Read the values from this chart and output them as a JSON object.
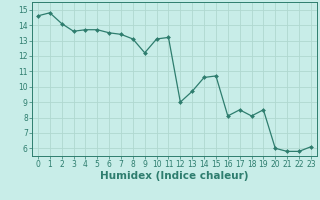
{
  "x": [
    0,
    1,
    2,
    3,
    4,
    5,
    6,
    7,
    8,
    9,
    10,
    11,
    12,
    13,
    14,
    15,
    16,
    17,
    18,
    19,
    20,
    21,
    22,
    23
  ],
  "y": [
    14.6,
    14.8,
    14.1,
    13.6,
    13.7,
    13.7,
    13.5,
    13.4,
    13.1,
    12.2,
    13.1,
    13.2,
    9.0,
    9.7,
    10.6,
    10.7,
    8.1,
    8.5,
    8.1,
    8.5,
    6.0,
    5.8,
    5.8,
    6.1
  ],
  "line_color": "#2e7d6e",
  "marker_color": "#2e7d6e",
  "bg_color": "#c8ede8",
  "grid_color": "#b0d8d0",
  "xlabel": "Humidex (Indice chaleur)",
  "xlim": [
    -0.5,
    23.5
  ],
  "ylim": [
    5.5,
    15.5
  ],
  "yticks": [
    6,
    7,
    8,
    9,
    10,
    11,
    12,
    13,
    14,
    15
  ],
  "xticks": [
    0,
    1,
    2,
    3,
    4,
    5,
    6,
    7,
    8,
    9,
    10,
    11,
    12,
    13,
    14,
    15,
    16,
    17,
    18,
    19,
    20,
    21,
    22,
    23
  ],
  "tick_label_fontsize": 5.5,
  "xlabel_fontsize": 7.5,
  "marker_size": 2.0,
  "linewidth": 0.9
}
